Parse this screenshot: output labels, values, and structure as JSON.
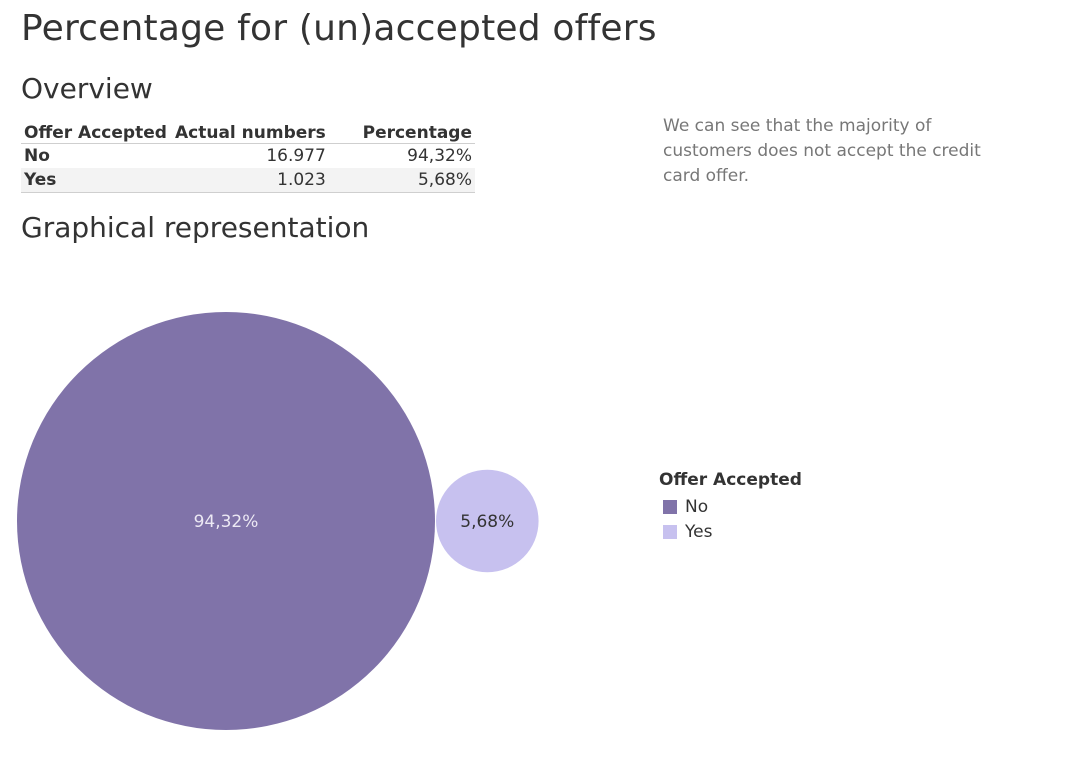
{
  "title": "Percentage for (un)accepted offers",
  "overview": {
    "heading": "Overview",
    "columns": [
      "Offer Accepted",
      "Actual numbers",
      "Percentage"
    ],
    "rows": [
      {
        "category": "No",
        "count": "16.977",
        "percentage": "94,32%"
      },
      {
        "category": "Yes",
        "count": "1.023",
        "percentage": "5,68%"
      }
    ]
  },
  "note": "We can see that the majority of customers does not accept the credit card offer.",
  "graphical": {
    "heading": "Graphical representation"
  },
  "legend": {
    "title": "Offer Accepted",
    "items": [
      {
        "label": "No",
        "color": "#8073a9"
      },
      {
        "label": "Yes",
        "color": "#c7c1ef"
      }
    ]
  },
  "chart_data": {
    "type": "bubble",
    "categories": [
      "No",
      "Yes"
    ],
    "values": [
      94.32,
      5.68
    ],
    "labels": [
      "94,32%",
      "5,68%"
    ],
    "colors": [
      "#8073a9",
      "#c7c1ef"
    ],
    "label_colors": [
      "#ece9f4",
      "#333333"
    ],
    "legend_title": "Offer Accepted"
  }
}
